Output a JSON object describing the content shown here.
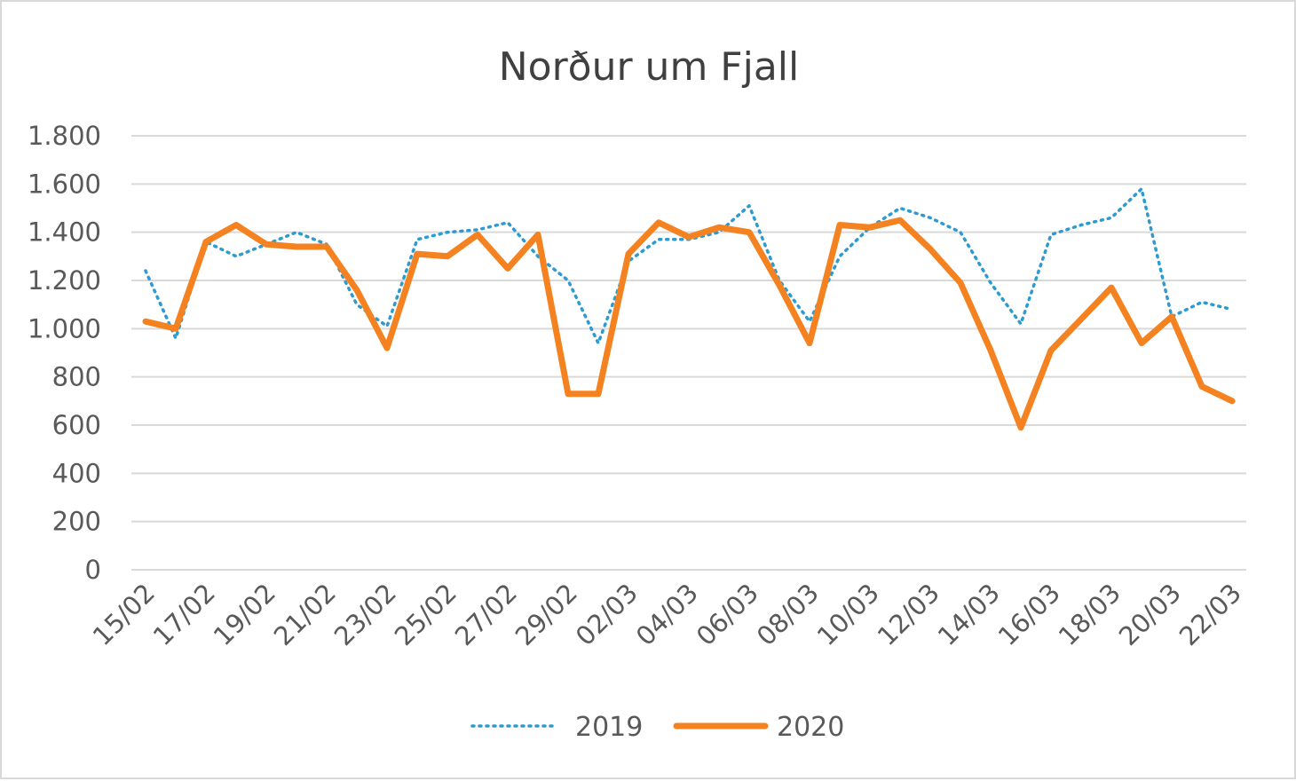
{
  "chart_data": {
    "type": "line",
    "title": "Norður um Fjall",
    "xlabel": "",
    "ylabel": "",
    "ylim": [
      0,
      1800
    ],
    "yticks": [
      0,
      200,
      400,
      600,
      800,
      1000,
      1200,
      1400,
      1600,
      1800
    ],
    "ytick_labels": [
      "0",
      "200",
      "400",
      "600",
      "800",
      "1.000",
      "1.200",
      "1.400",
      "1.600",
      "1.800"
    ],
    "categories": [
      "15/02",
      "16/02",
      "17/02",
      "18/02",
      "19/02",
      "20/02",
      "21/02",
      "22/02",
      "23/02",
      "24/02",
      "25/02",
      "26/02",
      "27/02",
      "28/02",
      "29/02",
      "01/03",
      "02/03",
      "03/03",
      "04/03",
      "05/03",
      "06/03",
      "07/03",
      "08/03",
      "09/03",
      "10/03",
      "11/03",
      "12/03",
      "13/03",
      "14/03",
      "15/03",
      "16/03",
      "17/03",
      "18/03",
      "19/03",
      "20/03",
      "21/03",
      "22/03"
    ],
    "xtick_labels": [
      "15/02",
      "17/02",
      "19/02",
      "21/02",
      "23/02",
      "25/02",
      "27/02",
      "29/02",
      "02/03",
      "04/03",
      "06/03",
      "08/03",
      "10/03",
      "12/03",
      "14/03",
      "16/03",
      "18/03",
      "20/03",
      "22/03"
    ],
    "grid": true,
    "legend_position": "bottom",
    "series": [
      {
        "name": "2019",
        "color": "#2e9bd0",
        "style": "dotted",
        "values": [
          1240,
          960,
          1360,
          1300,
          1350,
          1400,
          1350,
          1100,
          1010,
          1370,
          1400,
          1410,
          1440,
          1300,
          1200,
          940,
          1280,
          1370,
          1370,
          1400,
          1510,
          1200,
          1030,
          1300,
          1420,
          1500,
          1460,
          1400,
          1190,
          1020,
          1390,
          1430,
          1460,
          1580,
          1050,
          1110,
          1080
        ]
      },
      {
        "name": "2020",
        "color": "#f58220",
        "style": "solid",
        "values": [
          1030,
          1000,
          1360,
          1430,
          1350,
          1340,
          1340,
          1160,
          920,
          1310,
          1300,
          1390,
          1250,
          1390,
          730,
          730,
          1310,
          1440,
          1380,
          1420,
          1400,
          1180,
          940,
          1430,
          1420,
          1450,
          1330,
          1190,
          910,
          590,
          910,
          1040,
          1170,
          940,
          1050,
          760,
          700
        ]
      }
    ]
  }
}
